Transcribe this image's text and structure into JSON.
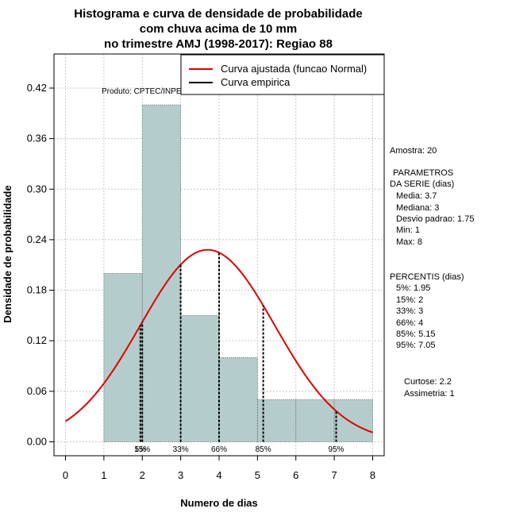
{
  "chart_data": {
    "type": "bar",
    "title_lines": [
      "Histograma e curva de densidade de probabilidade",
      "com chuva acima de 10 mm",
      "no trimestre AMJ (1998-2017): Regiao 88"
    ],
    "xlabel": "Numero de dias",
    "ylabel": "Densidade de probabilidade",
    "xlim": [
      -0.3,
      8.3
    ],
    "ylim": [
      -0.0165,
      0.4605
    ],
    "x_ticks": [
      0,
      1,
      2,
      3,
      4,
      5,
      6,
      7,
      8
    ],
    "y_ticks": [
      0.0,
      0.06,
      0.12,
      0.18,
      0.24,
      0.3,
      0.36,
      0.42
    ],
    "y_tick_labels": [
      "0.00",
      "0.06",
      "0.12",
      "0.18",
      "0.24",
      "0.30",
      "0.36",
      "0.42"
    ],
    "bins": [
      {
        "start": 1,
        "end": 2,
        "density": 0.2
      },
      {
        "start": 2,
        "end": 3,
        "density": 0.4
      },
      {
        "start": 3,
        "end": 4,
        "density": 0.15
      },
      {
        "start": 4,
        "end": 5,
        "density": 0.1
      },
      {
        "start": 5,
        "end": 6,
        "density": 0.05
      },
      {
        "start": 6,
        "end": 7,
        "density": 0.05
      },
      {
        "start": 7,
        "end": 8,
        "density": 0.05
      }
    ],
    "normal_curve": {
      "mean": 3.7,
      "sd": 1.75,
      "x_from": 0,
      "x_to": 8
    },
    "percentile_lines": [
      {
        "label": "5%",
        "x": 1.95
      },
      {
        "label": "15%",
        "x": 2
      },
      {
        "label": "33%",
        "x": 3
      },
      {
        "label": "66%",
        "x": 4
      },
      {
        "label": "85%",
        "x": 5.15
      },
      {
        "label": "95%",
        "x": 7.05
      }
    ],
    "legend": [
      {
        "label": "Curva ajustada (funcao Normal)",
        "color": "#e00000"
      },
      {
        "label": "Curva empirica",
        "color": "#000000"
      }
    ],
    "legend_position": "top-right",
    "annotation": "Produto: CPTEC/INPE",
    "bar_color": "#b5cccc",
    "curve_color": "#e00000"
  },
  "side_panel": {
    "amostra": "Amostra: 20",
    "parametros_lines": [
      "PARAMETROS",
      "DA SERIE (dias)"
    ],
    "parametros_values": [
      "Media: 3.7",
      "Mediana: 3",
      "Desvio padrao: 1.75",
      "Min: 1",
      "Max: 8"
    ],
    "percentis_header": "PERCENTIS (dias)",
    "percentis_values": [
      "5%: 1.95",
      "15%: 2",
      "33%: 3",
      "66%: 4",
      "85%: 5.15",
      "95%: 7.05"
    ],
    "shape_values": [
      "Curtose: 2.2",
      "Assimetria: 1"
    ]
  }
}
